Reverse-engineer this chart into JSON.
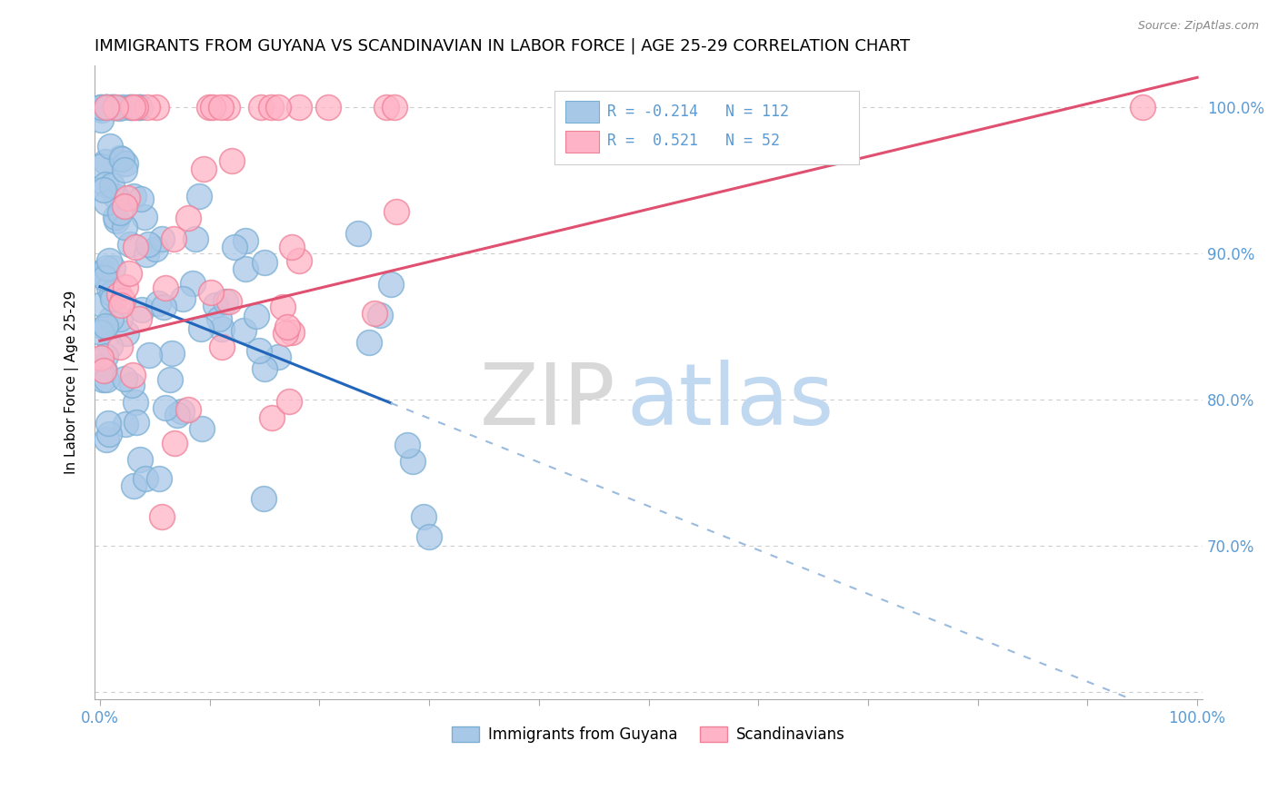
{
  "title": "IMMIGRANTS FROM GUYANA VS SCANDINAVIAN IN LABOR FORCE | AGE 25-29 CORRELATION CHART",
  "source": "Source: ZipAtlas.com",
  "ylabel": "In Labor Force | Age 25-29",
  "xlim": [
    -0.005,
    1.005
  ],
  "ylim": [
    0.595,
    1.028
  ],
  "ytick_positions": [
    0.6,
    0.7,
    0.8,
    0.9,
    1.0
  ],
  "ytick_color": "#5b9bd5",
  "xtick_color": "#5b9bd5",
  "legend_color1": "#a8c8e8",
  "legend_color2": "#ffb3c6",
  "legend_edge1": "#7aafd4",
  "legend_edge2": "#f08098",
  "line1_color": "#2266bb",
  "line2_color": "#e05070",
  "line1_dash_color": "#99bbdd",
  "scatter1_color": "#a8c8e8",
  "scatter2_color": "#ffb3c6",
  "scatter1_edge": "#7aafd4",
  "scatter2_edge": "#f08098",
  "grid_color": "#cccccc",
  "watermark_zip_color": "#d8d8d8",
  "watermark_atlas_color": "#c0d8f0",
  "n_guyana": 112,
  "n_scand": 52,
  "seed": 42
}
